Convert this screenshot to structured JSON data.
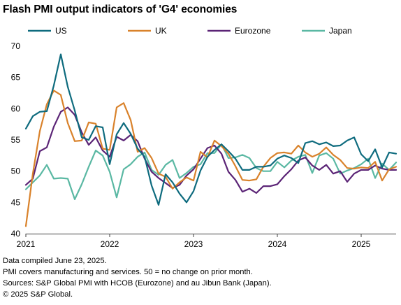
{
  "title": "Flash PMI output indicators of 'G4' economies",
  "notes": [
    "Data compiled June 23, 2025.",
    "PMI covers manufacturing and services. 50 = no change on prior month.",
    "Sources: S&P Global PMI with HCOB (Eurozone) and au Jibun Bank (Japan).",
    "© 2025 S&P Global."
  ],
  "chart_data": {
    "type": "line",
    "title": "Flash PMI output indicators of 'G4' economies",
    "xlabel": "",
    "ylabel": "",
    "ylim": [
      40,
      70
    ],
    "yticks": [
      40,
      45,
      50,
      55,
      60,
      65,
      70
    ],
    "xlim": [
      "2021-01",
      "2025-06"
    ],
    "xtick_labels": [
      "2021",
      "2022",
      "2023",
      "2024",
      "2025"
    ],
    "grid": false,
    "legend": "top",
    "x": [
      "2021-01",
      "2021-02",
      "2021-03",
      "2021-04",
      "2021-05",
      "2021-06",
      "2021-07",
      "2021-08",
      "2021-09",
      "2021-10",
      "2021-11",
      "2021-12",
      "2022-01",
      "2022-02",
      "2022-03",
      "2022-04",
      "2022-05",
      "2022-06",
      "2022-07",
      "2022-08",
      "2022-09",
      "2022-10",
      "2022-11",
      "2022-12",
      "2023-01",
      "2023-02",
      "2023-03",
      "2023-04",
      "2023-05",
      "2023-06",
      "2023-07",
      "2023-08",
      "2023-09",
      "2023-10",
      "2023-11",
      "2023-12",
      "2024-01",
      "2024-02",
      "2024-03",
      "2024-04",
      "2024-05",
      "2024-06",
      "2024-07",
      "2024-08",
      "2024-09",
      "2024-10",
      "2024-11",
      "2024-12",
      "2025-01",
      "2025-02",
      "2025-03",
      "2025-04",
      "2025-05",
      "2025-06"
    ],
    "series": [
      {
        "name": "US",
        "color": "#0e6b7e",
        "values": [
          56.8,
          58.8,
          59.5,
          59.6,
          63.7,
          68.7,
          63.5,
          59.7,
          55.4,
          55.0,
          57.2,
          57.0,
          51.1,
          55.9,
          57.7,
          56.0,
          53.6,
          52.3,
          47.7,
          44.6,
          49.5,
          48.2,
          46.4,
          45.0,
          46.8,
          50.1,
          52.3,
          53.4,
          54.3,
          53.2,
          52.0,
          50.2,
          50.2,
          50.7,
          50.7,
          50.9,
          52.0,
          52.5,
          52.1,
          51.3,
          54.5,
          54.8,
          54.3,
          54.6,
          54.0,
          54.1,
          54.9,
          55.4,
          52.7,
          51.6,
          53.5,
          50.6,
          53.0,
          52.8
        ]
      },
      {
        "name": "UK",
        "color": "#d9822b",
        "values": [
          41.2,
          49.6,
          56.4,
          60.7,
          62.9,
          62.2,
          57.7,
          54.8,
          54.9,
          57.8,
          57.6,
          53.6,
          53.4,
          60.2,
          60.9,
          58.2,
          53.1,
          53.7,
          52.1,
          49.6,
          49.1,
          47.2,
          48.2,
          49.0,
          48.5,
          53.1,
          52.2,
          54.9,
          54.0,
          52.8,
          50.8,
          48.6,
          48.5,
          48.7,
          50.7,
          52.1,
          52.9,
          53.0,
          52.8,
          54.1,
          53.0,
          52.3,
          52.8,
          53.8,
          52.6,
          51.8,
          50.5,
          50.4,
          50.6,
          50.5,
          51.5,
          48.5,
          50.3,
          50.7
        ]
      },
      {
        "name": "Eurozone",
        "color": "#5b2476",
        "values": [
          47.8,
          48.8,
          53.2,
          53.8,
          57.1,
          59.5,
          60.2,
          59.0,
          56.2,
          54.2,
          55.4,
          53.3,
          52.3,
          55.5,
          54.9,
          55.8,
          54.8,
          52.0,
          49.9,
          48.9,
          48.1,
          47.3,
          47.8,
          49.3,
          50.3,
          52.0,
          53.7,
          54.1,
          52.8,
          49.9,
          48.6,
          46.7,
          47.2,
          46.5,
          47.6,
          47.6,
          47.9,
          49.2,
          50.3,
          51.7,
          52.2,
          50.9,
          50.2,
          51.0,
          49.6,
          50.0,
          48.3,
          49.6,
          50.2,
          50.2,
          50.9,
          50.4,
          50.2,
          50.2
        ]
      },
      {
        "name": "Japan",
        "color": "#5ab8a3",
        "values": [
          47.1,
          48.2,
          49.3,
          51.0,
          48.8,
          48.9,
          48.8,
          45.5,
          47.9,
          50.7,
          53.3,
          52.5,
          49.9,
          45.8,
          50.3,
          51.1,
          52.3,
          53.0,
          50.2,
          49.4,
          51.0,
          51.8,
          48.9,
          49.7,
          50.7,
          51.1,
          52.9,
          52.9,
          54.3,
          52.1,
          52.2,
          52.6,
          52.1,
          50.5,
          50.0,
          50.0,
          51.5,
          50.6,
          51.7,
          52.3,
          52.6,
          49.7,
          52.5,
          52.9,
          52.0,
          49.6,
          50.1,
          50.5,
          51.1,
          52.0,
          48.9,
          51.2,
          50.2,
          51.4
        ]
      }
    ]
  }
}
